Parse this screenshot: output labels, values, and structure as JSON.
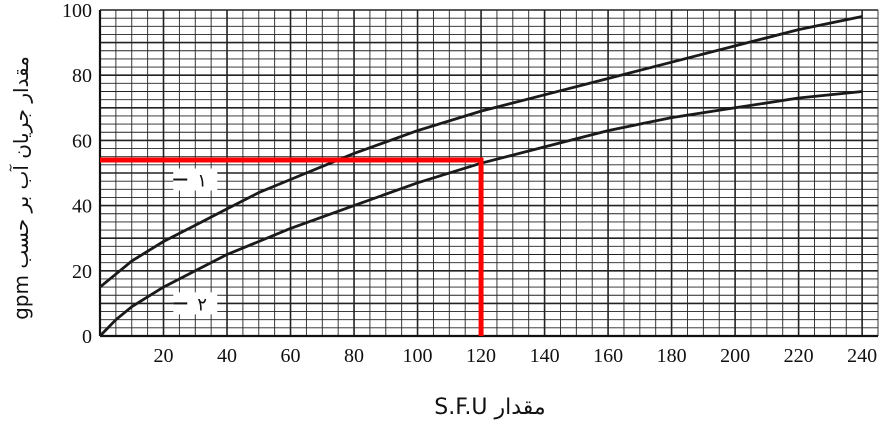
{
  "chart_data": {
    "type": "line",
    "xlabel": "مقدار S.F.U",
    "ylabel": "مقدار جریان آب بر حسب gpm",
    "xlim": [
      0,
      245
    ],
    "ylim": [
      0,
      100
    ],
    "x_ticks": [
      20,
      40,
      60,
      80,
      100,
      120,
      140,
      160,
      180,
      200,
      220,
      240
    ],
    "y_ticks": [
      0,
      20,
      40,
      60,
      80,
      100
    ],
    "grid": true,
    "series": [
      {
        "name": "۱",
        "color": "#1a1a1a",
        "x": [
          0,
          5,
          10,
          20,
          30,
          40,
          50,
          60,
          80,
          100,
          120,
          140,
          160,
          180,
          200,
          220,
          240
        ],
        "y": [
          15,
          19,
          23,
          29,
          34,
          39,
          44,
          48,
          56,
          63,
          69,
          74,
          79,
          84,
          89,
          94,
          98
        ]
      },
      {
        "name": "۲",
        "color": "#1a1a1a",
        "x": [
          0,
          5,
          10,
          20,
          30,
          40,
          50,
          60,
          80,
          100,
          120,
          140,
          160,
          180,
          200,
          220,
          240
        ],
        "y": [
          0,
          5,
          9,
          15,
          20,
          25,
          29,
          33,
          40,
          47,
          53,
          58,
          63,
          67,
          70,
          73,
          75
        ]
      }
    ],
    "annotation": {
      "color": "#ff0000",
      "x": 120,
      "y": 54
    }
  }
}
